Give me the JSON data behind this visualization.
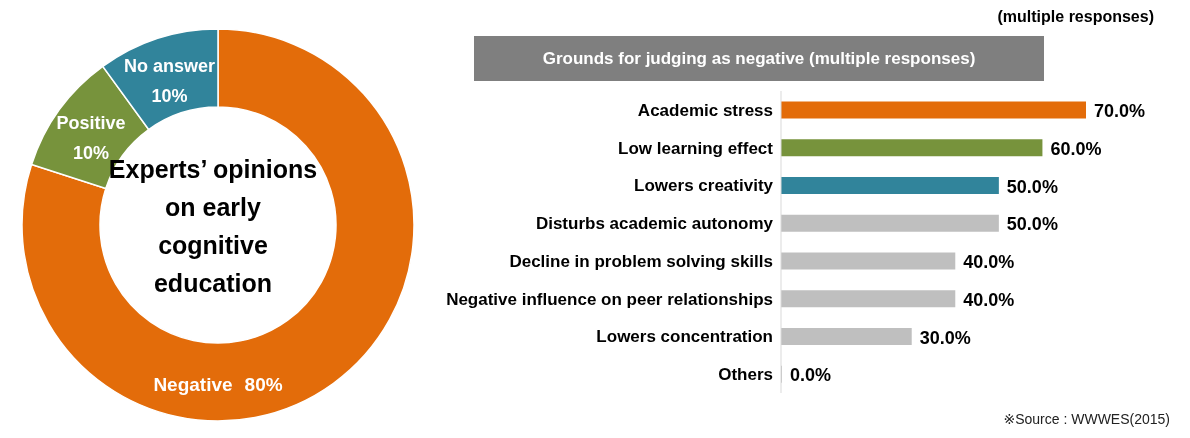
{
  "chart_data": [
    {
      "type": "donut",
      "title": "Experts’ opinions on early cognitive education",
      "categories": [
        "Negative",
        "Positive",
        "No answer"
      ],
      "values": [
        80,
        10,
        10
      ],
      "colors": [
        "#e36c0a",
        "#77933c",
        "#31849b"
      ],
      "value_labels": [
        "80%",
        "10%",
        "10%"
      ],
      "legend": false
    },
    {
      "type": "bar",
      "orientation": "horizontal",
      "title": "Grounds for judging as negative (multiple responses)",
      "subtitle": "(multiple responses)",
      "categories": [
        "Academic stress",
        "Low learning effect",
        "Lowers creativity",
        "Disturbs academic autonomy",
        "Decline in problem solving skills",
        "Negative influence on peer relationships",
        "Lowers concentration",
        "Others"
      ],
      "values": [
        70,
        60,
        50,
        50,
        40,
        40,
        30,
        0
      ],
      "colors": [
        "#e36c0a",
        "#77933c",
        "#31849b",
        "#bfbfbf",
        "#bfbfbf",
        "#bfbfbf",
        "#bfbfbf",
        "#bfbfbf"
      ],
      "value_labels": [
        "70.0%",
        "60.0%",
        "50.0%",
        "50.0%",
        "40.0%",
        "40.0%",
        "30.0%",
        "0.0%"
      ],
      "legend": false,
      "annotations": [
        "※Source : WWWES(2015)"
      ]
    }
  ]
}
